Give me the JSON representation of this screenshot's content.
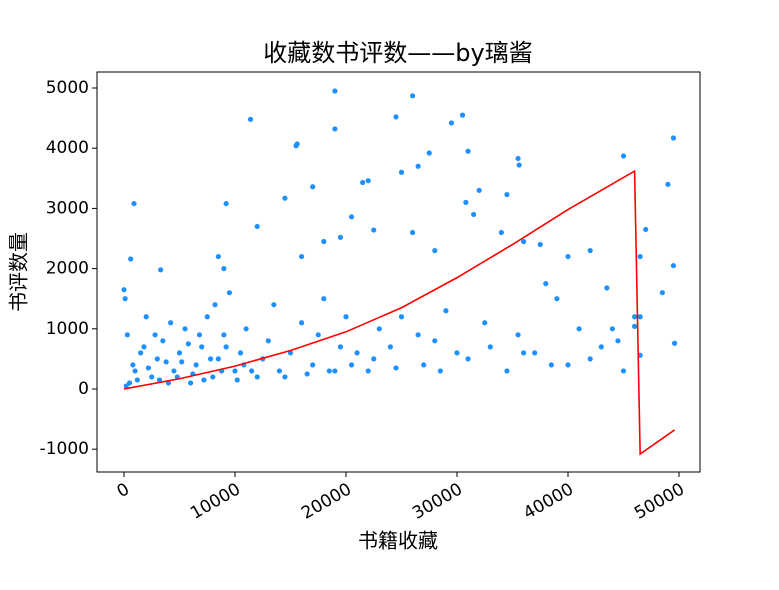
{
  "chart_data": {
    "type": "scatter",
    "title": "收藏数书评数——by璃酱",
    "x_label": "书籍收藏",
    "y_label": "书评数量",
    "xlim": [
      -2432,
      51892
    ],
    "ylim": [
      -1379,
      5266
    ],
    "xticks": [
      0,
      10000,
      20000,
      30000,
      40000,
      50000
    ],
    "yticks": [
      -1000,
      0,
      1000,
      2000,
      3000,
      4000,
      5000
    ],
    "series": [
      {
        "color": "#1e90ff",
        "x": [
          19000,
          26000,
          11400,
          30500,
          19000,
          29500,
          24500,
          15600,
          15500,
          49500,
          31000,
          27500,
          35500,
          35600,
          45000,
          26500,
          25000,
          22000,
          21500,
          17000,
          49000,
          32000,
          30800,
          34500,
          14500,
          900,
          9200,
          20500,
          19500,
          18000,
          12000,
          22500,
          26000,
          31500,
          34000,
          47000,
          46500,
          42000,
          40000,
          36000,
          37500,
          28000,
          16000,
          8500,
          9000,
          600,
          3300,
          49500,
          48500,
          43500,
          39000,
          38000,
          44000,
          46000,
          46500,
          46000,
          49600,
          46500,
          41000,
          45000,
          40000,
          43000,
          38500,
          36000,
          33000,
          31000,
          29000,
          28000,
          27000,
          25000,
          24000,
          23000,
          22000,
          21000,
          20000,
          19500,
          19000,
          18000,
          17500,
          17000,
          16000,
          15000,
          14000,
          13500,
          13000,
          12500,
          12000,
          11000,
          10500,
          10000,
          9500,
          9000,
          8500,
          8000,
          7500,
          7000,
          6500,
          6000,
          5500,
          5000,
          4500,
          4000,
          3500,
          3000,
          2500,
          2000,
          1500,
          1000,
          500,
          200,
          100,
          0,
          300,
          800,
          1200,
          1800,
          2200,
          2800,
          3200,
          3800,
          4200,
          4800,
          5200,
          5800,
          6200,
          6800,
          7200,
          7800,
          8200,
          8800,
          9200,
          10200,
          10800,
          11500,
          14500,
          16500,
          18500,
          20500,
          22500,
          24500,
          26500,
          28500,
          30000,
          32500,
          34500,
          35500,
          37000,
          42000,
          44500
        ],
        "values": [
          4950,
          4870,
          4480,
          4550,
          4320,
          4420,
          4520,
          4070,
          4040,
          4170,
          3950,
          3920,
          3830,
          3720,
          3870,
          3700,
          3600,
          3460,
          3430,
          3360,
          3400,
          3300,
          3100,
          3230,
          3170,
          3080,
          3080,
          2860,
          2520,
          2450,
          2700,
          2640,
          2600,
          2900,
          2600,
          2650,
          2200,
          2300,
          2200,
          2450,
          2400,
          2300,
          2200,
          2200,
          2000,
          2160,
          1980,
          2050,
          1600,
          1680,
          1500,
          1750,
          1000,
          1200,
          1200,
          1040,
          760,
          560,
          1000,
          300,
          400,
          700,
          400,
          600,
          700,
          500,
          1300,
          800,
          400,
          1200,
          700,
          1000,
          300,
          600,
          1200,
          700,
          300,
          1500,
          900,
          400,
          1100,
          600,
          300,
          1400,
          800,
          500,
          200,
          1000,
          600,
          300,
          1600,
          900,
          500,
          200,
          1200,
          700,
          400,
          100,
          1000,
          600,
          300,
          100,
          800,
          500,
          200,
          1200,
          600,
          300,
          100,
          50,
          1500,
          1650,
          900,
          400,
          150,
          700,
          350,
          900,
          150,
          450,
          1100,
          200,
          450,
          750,
          250,
          900,
          150,
          500,
          1400,
          300,
          700,
          150,
          400,
          300,
          200,
          250,
          300,
          400,
          500,
          350,
          900,
          300,
          600,
          1100,
          300,
          900,
          600,
          500,
          800
        ]
      },
      {
        "type": "line",
        "color": "#ff0000",
        "x": [
          0,
          5000,
          10000,
          15000,
          20000,
          25000,
          30000,
          35000,
          40000,
          46000,
          46500,
          49600
        ],
        "values": [
          0,
          170,
          380,
          640,
          950,
          1350,
          1850,
          2400,
          2980,
          3620,
          -1080,
          -680
        ]
      }
    ]
  }
}
